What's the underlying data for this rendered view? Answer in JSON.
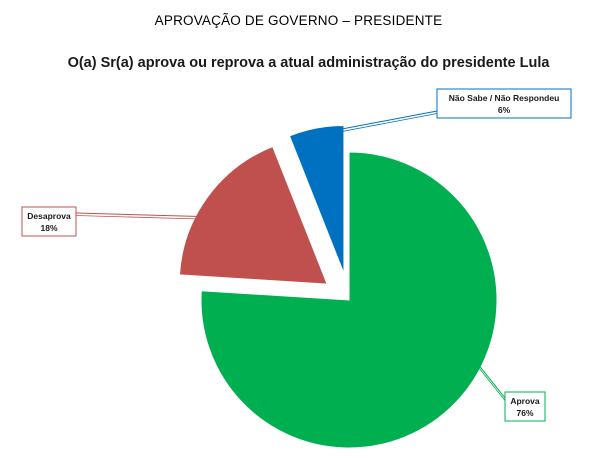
{
  "header": {
    "title": "APROVAÇÃO DE GOVERNO – PRESIDENTE",
    "subtitle": "O(a) Sr(a) aprova ou reprova a atual administração do presidente Lula"
  },
  "chart_data": {
    "type": "pie",
    "title": "O(a) Sr(a) aprova ou reprova a atual administração do presidente Lula",
    "slices": [
      {
        "label": "Aprova",
        "value": 76,
        "value_label": "76%",
        "color": "#00b050"
      },
      {
        "label": "Desaprova",
        "value": 18,
        "value_label": "18%",
        "color": "#c0504d"
      },
      {
        "label": "Não Sabe / Não Respondeu",
        "value": 6,
        "value_label": "6%",
        "color": "#0070c0"
      }
    ],
    "exploded": true,
    "legend": "none",
    "data_labels": "callout boxes with leader lines"
  }
}
